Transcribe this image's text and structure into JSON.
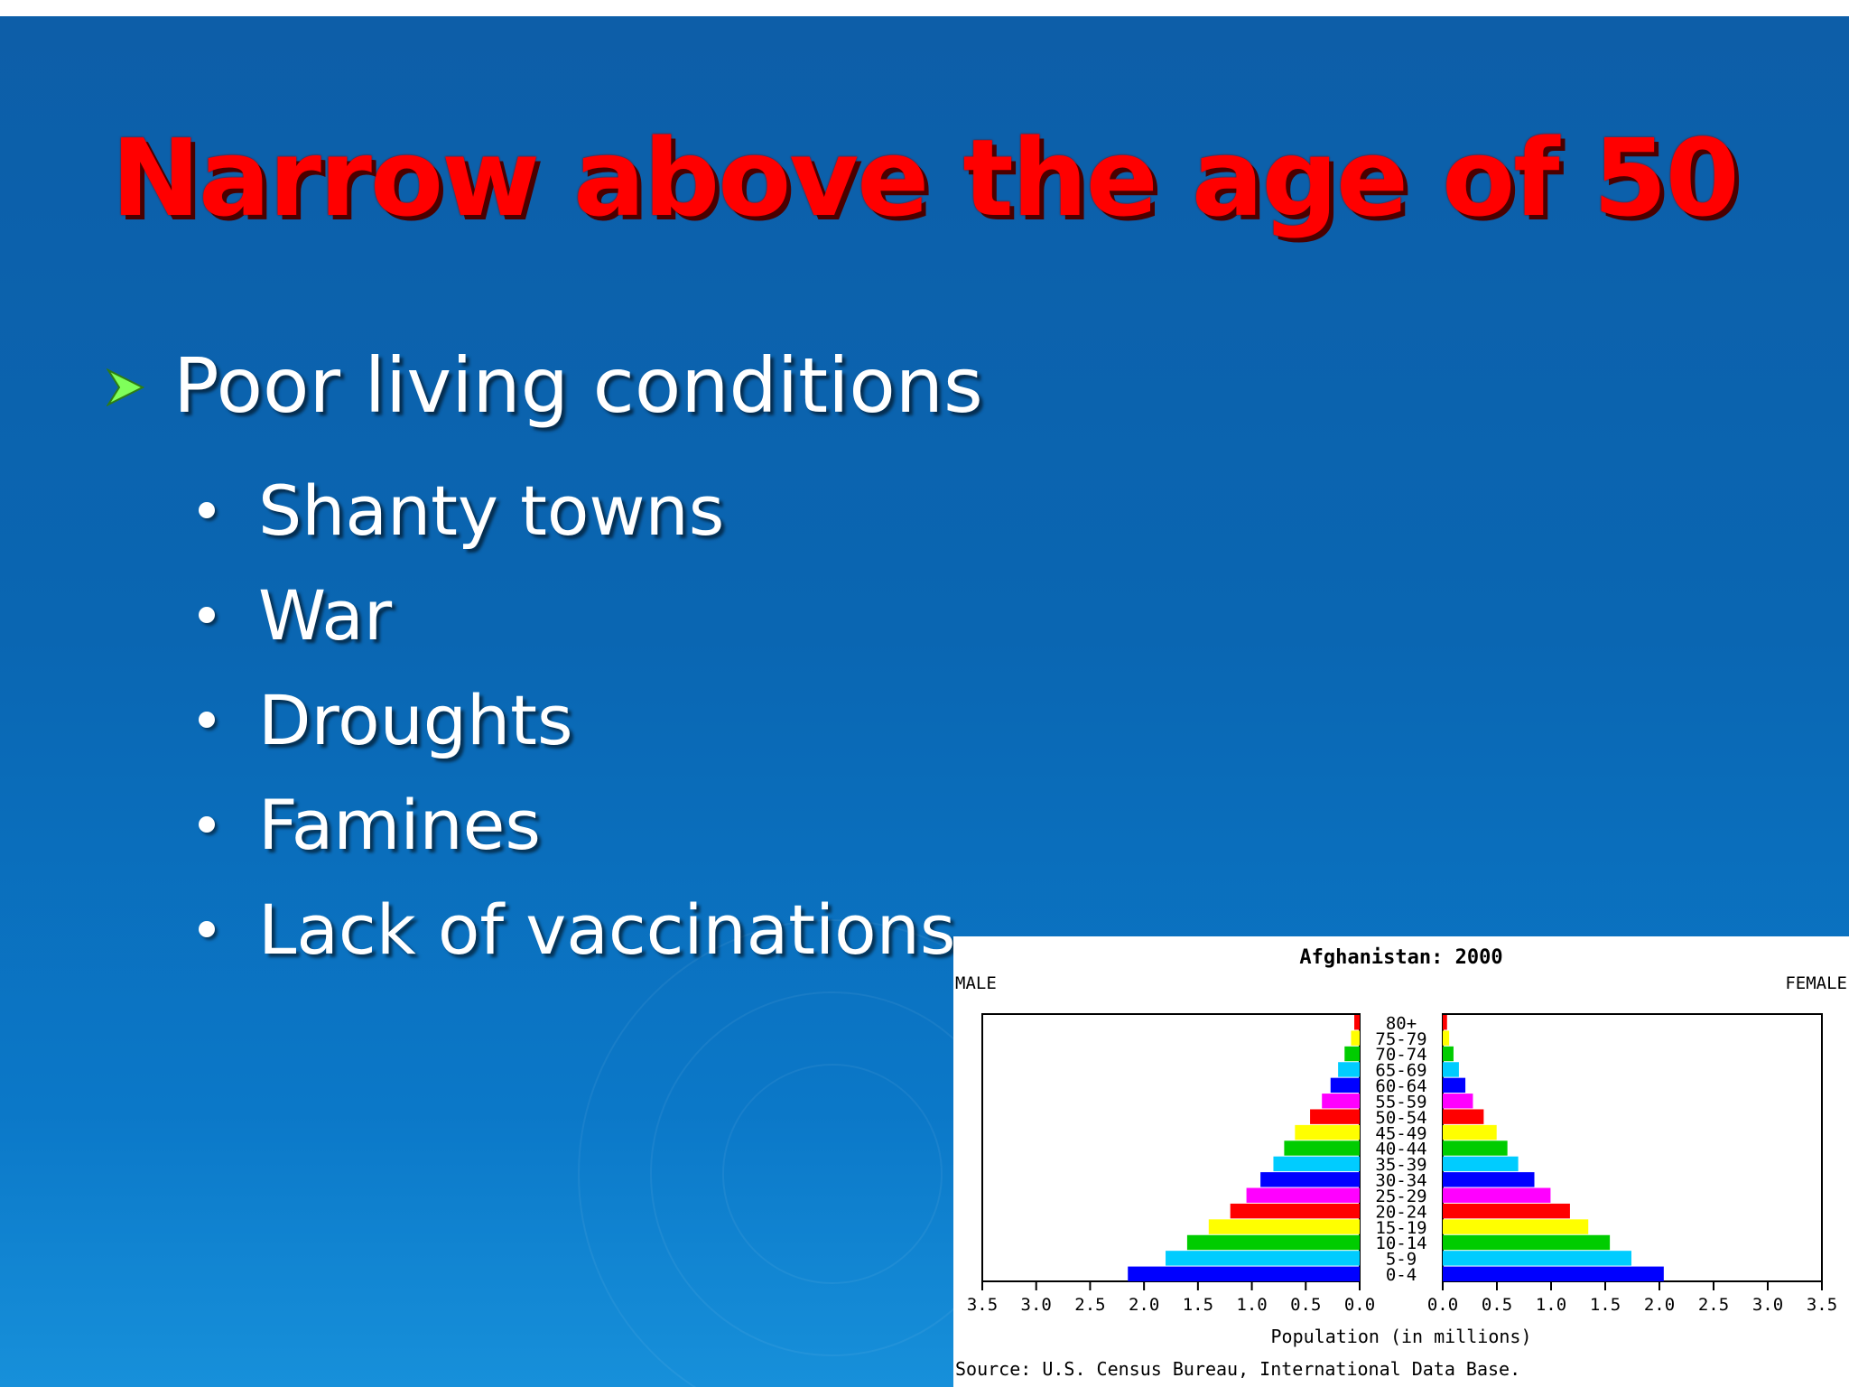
{
  "slide": {
    "title": "Narrow above the age of 50",
    "bullet_main": "Poor living conditions",
    "sub_bullets": [
      "Shanty towns",
      "War",
      "Droughts",
      "Famines",
      "Lack of vaccinations"
    ],
    "colors": {
      "title": "#ff0000",
      "bullet_arrow": "#7fff5a",
      "text": "#ffffff"
    },
    "icons": {
      "main_bullet": "arrow-bullet-icon",
      "sub_bullet": "dot-bullet-icon"
    }
  },
  "chart_data": {
    "type": "bar",
    "subtype": "population-pyramid",
    "title": "Afghanistan: 2000",
    "left_label": "MALE",
    "right_label": "FEMALE",
    "xlabel": "Population (in millions)",
    "source": "Source: U.S. Census Bureau, International Data Base.",
    "categories": [
      "0-4",
      "5-9",
      "10-14",
      "15-19",
      "20-24",
      "25-29",
      "30-34",
      "35-39",
      "40-44",
      "45-49",
      "50-54",
      "55-59",
      "60-64",
      "65-69",
      "70-74",
      "75-79",
      "80+"
    ],
    "series": [
      {
        "name": "MALE",
        "values": [
          2.15,
          1.8,
          1.6,
          1.4,
          1.2,
          1.05,
          0.92,
          0.8,
          0.7,
          0.6,
          0.46,
          0.35,
          0.27,
          0.2,
          0.14,
          0.08,
          0.05
        ]
      },
      {
        "name": "FEMALE",
        "values": [
          2.05,
          1.75,
          1.55,
          1.35,
          1.18,
          1.0,
          0.85,
          0.7,
          0.6,
          0.5,
          0.38,
          0.28,
          0.21,
          0.15,
          0.1,
          0.06,
          0.04
        ]
      }
    ],
    "bar_colors": [
      "#0000ff",
      "#00ccff",
      "#00cc00",
      "#ffff00",
      "#ff0000",
      "#ff00ff",
      "#0000ff",
      "#00ccff",
      "#00cc00",
      "#ffff00",
      "#ff0000",
      "#ff00ff",
      "#0000ff",
      "#00ccff",
      "#00cc00",
      "#ffff00",
      "#ff0000"
    ],
    "male_ticks": [
      "3.5",
      "3.0",
      "2.5",
      "2.0",
      "1.5",
      "1.0",
      "0.5",
      "0.0"
    ],
    "female_ticks": [
      "0.0",
      "0.5",
      "1.0",
      "1.5",
      "2.0",
      "2.5",
      "3.0",
      "3.5"
    ],
    "xlim": [
      0,
      3.5
    ],
    "grid": false
  }
}
